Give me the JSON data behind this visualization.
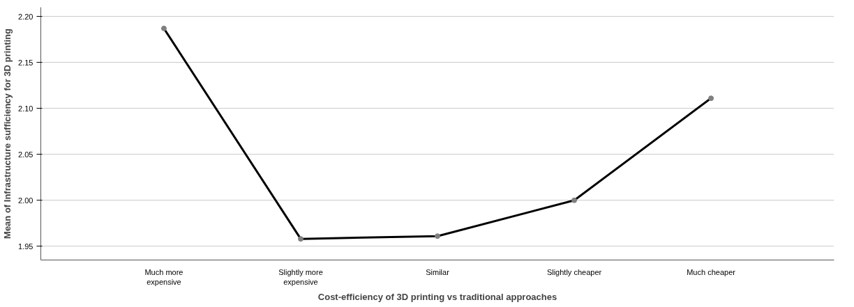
{
  "chart_data": {
    "type": "line",
    "xlabel": "Cost-efficiency of 3D printing vs traditional approaches",
    "ylabel": "Mean of Infrastructure sufficiency for 3D printing",
    "categories": [
      "Much more\nexpensive",
      "Slightly more\nexpensive",
      "Similar",
      "Slightly cheaper",
      "Much cheaper"
    ],
    "series": [
      {
        "color": "#000000",
        "values": [
          2.187,
          1.958,
          1.961,
          2.0,
          2.111
        ]
      }
    ],
    "ylim": [
      1.935,
      2.21
    ],
    "yticks": [
      {
        "value": 1.95,
        "label": "1.95"
      },
      {
        "value": 2.0,
        "label": "2.00"
      },
      {
        "value": 2.05,
        "label": "2.05"
      },
      {
        "value": 2.1,
        "label": "2.10"
      },
      {
        "value": 2.15,
        "label": "2.15"
      },
      {
        "value": 2.2,
        "label": "2.20"
      }
    ],
    "grid": "y",
    "marker": "circle",
    "line_style": "solid"
  }
}
